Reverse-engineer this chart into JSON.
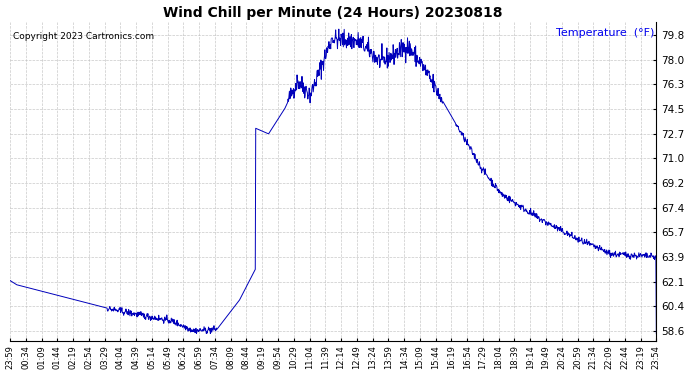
{
  "title": "Wind Chill per Minute (24 Hours) 20230818",
  "ylabel": "Temperature  (°F)",
  "copyright_text": "Copyright 2023 Cartronics.com",
  "line_color": "#0000bb",
  "background_color": "#ffffff",
  "grid_color": "#bbbbbb",
  "yticks": [
    58.6,
    60.4,
    62.1,
    63.9,
    65.7,
    67.4,
    69.2,
    71.0,
    72.7,
    74.5,
    76.3,
    78.0,
    79.8
  ],
  "ylim": [
    57.9,
    80.7
  ],
  "xtick_labels": [
    "23:59",
    "00:34",
    "01:09",
    "01:44",
    "02:19",
    "02:54",
    "03:29",
    "04:04",
    "04:39",
    "05:14",
    "05:49",
    "06:24",
    "06:59",
    "07:34",
    "08:09",
    "08:44",
    "09:19",
    "09:54",
    "10:29",
    "11:04",
    "11:39",
    "12:14",
    "12:49",
    "13:24",
    "13:59",
    "14:34",
    "15:09",
    "15:44",
    "16:19",
    "16:54",
    "17:29",
    "18:04",
    "18:39",
    "19:14",
    "19:49",
    "20:24",
    "20:59",
    "21:34",
    "22:09",
    "22:44",
    "23:19",
    "23:54"
  ],
  "figsize": [
    6.9,
    3.75
  ],
  "dpi": 100
}
